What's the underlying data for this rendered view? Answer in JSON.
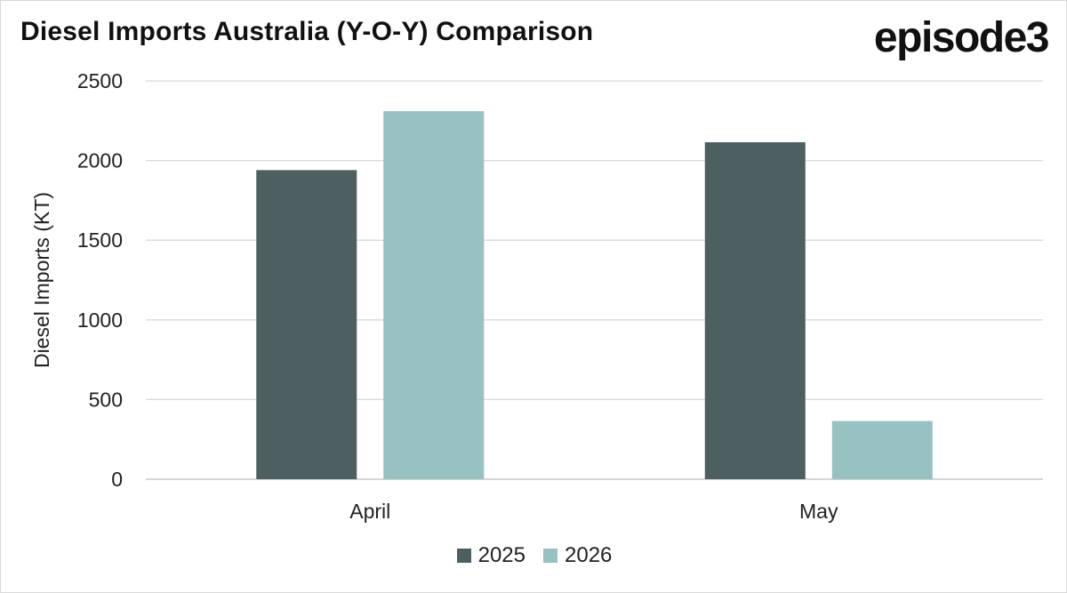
{
  "header": {
    "title": "Diesel Imports Australia (Y-O-Y) Comparison",
    "logo_text": "episode3"
  },
  "chart_data": {
    "type": "bar",
    "title": "Diesel Imports Australia (Y-O-Y) Comparison",
    "xlabel": "",
    "ylabel": "Diesel Imports (KT)",
    "categories": [
      "April",
      "May"
    ],
    "series": [
      {
        "name": "2025",
        "values": [
          1940,
          2115
        ],
        "color": "#4d5f60"
      },
      {
        "name": "2026",
        "values": [
          2310,
          365
        ],
        "color": "#98c1c1"
      }
    ],
    "ylim": [
      0,
      2500
    ],
    "yticks": [
      0,
      500,
      1000,
      1500,
      2000,
      2500
    ],
    "grid": true,
    "legend_position": "bottom"
  }
}
